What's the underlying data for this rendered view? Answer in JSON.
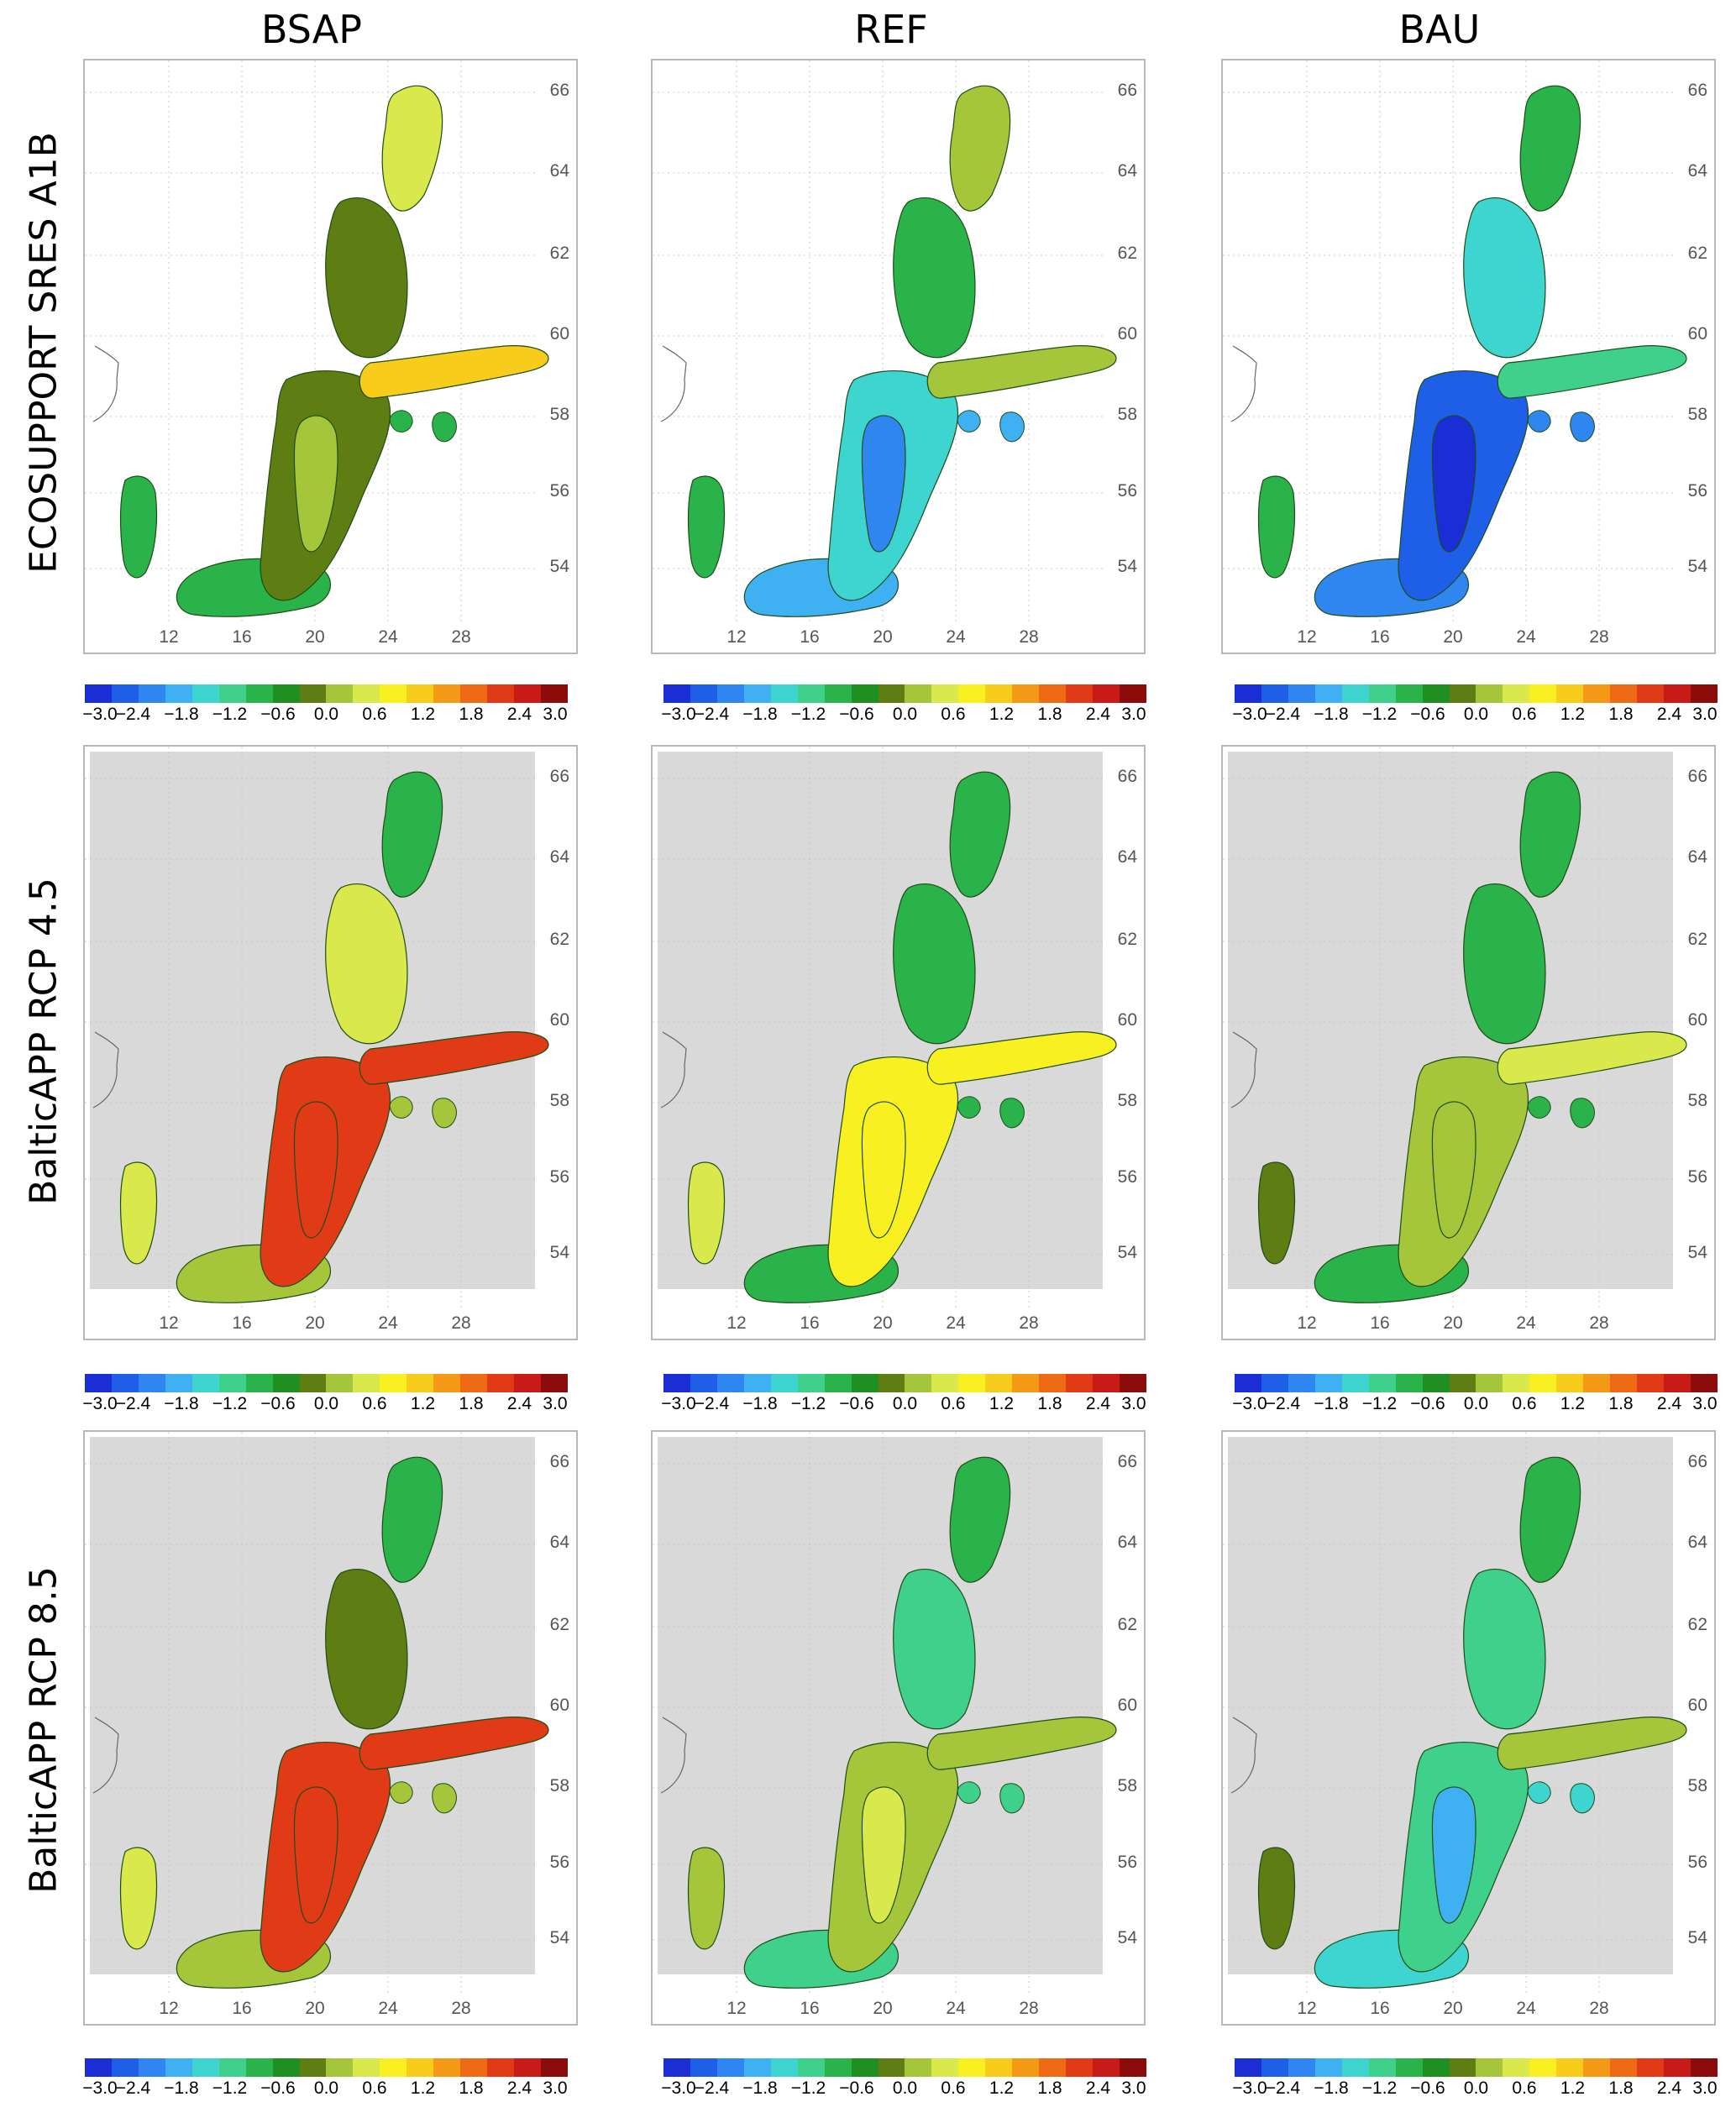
{
  "columns": [
    "BSAP",
    "REF",
    "BAU"
  ],
  "rows": [
    "ECOSUPPORT SRES   A1B",
    "BalticAPP RCP 4.5",
    "BalticAPP RCP 8.5"
  ],
  "lat_labels": [
    "66",
    "64",
    "62",
    "60",
    "58",
    "56",
    "54"
  ],
  "lon_labels": [
    "12",
    "16",
    "20",
    "24",
    "28"
  ],
  "colorbar": {
    "ticks": [
      "-3.0",
      "-2.4",
      "-1.8",
      "-1.2",
      "-0.6",
      "0.0",
      "0.6",
      "1.2",
      "1.8",
      "2.4",
      "3.0"
    ],
    "colors": [
      "#1b2ed6",
      "#1f5fe8",
      "#2f86f0",
      "#3fb0f2",
      "#3ed4d0",
      "#3fd08c",
      "#29b34a",
      "#1f8f22",
      "#5e7d12",
      "#a5c63a",
      "#d9e84a",
      "#f8f020",
      "#f8cc1a",
      "#f59a16",
      "#ee6a14",
      "#e03a17",
      "#c81a16",
      "#8c0c0c"
    ]
  },
  "panels": [
    {
      "id": "a1b-bsap",
      "background": "none",
      "fill": {
        "bothnian_bay": "#d9e84a",
        "bothnian_sea": "#5e7d12",
        "gulf_of_finland": "#f8cc1a",
        "baltic_proper": "#5e7d12",
        "gotland": "#a5c63a",
        "southern": "#29b34a",
        "kattegat": "#29b34a"
      }
    },
    {
      "id": "a1b-ref",
      "background": "none",
      "fill": {
        "bothnian_bay": "#a5c63a",
        "bothnian_sea": "#29b34a",
        "gulf_of_finland": "#a5c63a",
        "baltic_proper": "#3ed4d0",
        "gotland": "#2f86f0",
        "southern": "#3fb0f2",
        "kattegat": "#29b34a"
      }
    },
    {
      "id": "a1b-bau",
      "background": "none",
      "fill": {
        "bothnian_bay": "#29b34a",
        "bothnian_sea": "#3ed4d0",
        "gulf_of_finland": "#3fd08c",
        "baltic_proper": "#1f5fe8",
        "gotland": "#1b2ed6",
        "southern": "#2f86f0",
        "kattegat": "#29b34a"
      }
    },
    {
      "id": "rcp45-bsap",
      "background": "grid",
      "fill": {
        "bothnian_bay": "#29b34a",
        "bothnian_sea": "#d9e84a",
        "gulf_of_finland": "#e03a17",
        "baltic_proper": "#e03a17",
        "gotland": "#e03a17",
        "southern": "#a5c63a",
        "kattegat": "#d9e84a"
      }
    },
    {
      "id": "rcp45-ref",
      "background": "grid",
      "fill": {
        "bothnian_bay": "#29b34a",
        "bothnian_sea": "#29b34a",
        "gulf_of_finland": "#f8f020",
        "baltic_proper": "#f8f020",
        "gotland": "#f8f020",
        "southern": "#29b34a",
        "kattegat": "#d9e84a"
      }
    },
    {
      "id": "rcp45-bau",
      "background": "grid",
      "fill": {
        "bothnian_bay": "#29b34a",
        "bothnian_sea": "#29b34a",
        "gulf_of_finland": "#d9e84a",
        "baltic_proper": "#a5c63a",
        "gotland": "#a5c63a",
        "southern": "#29b34a",
        "kattegat": "#5e7d12"
      }
    },
    {
      "id": "rcp85-bsap",
      "background": "grid",
      "fill": {
        "bothnian_bay": "#29b34a",
        "bothnian_sea": "#5e7d12",
        "gulf_of_finland": "#e03a17",
        "baltic_proper": "#e03a17",
        "gotland": "#e03a17",
        "southern": "#a5c63a",
        "kattegat": "#d9e84a"
      }
    },
    {
      "id": "rcp85-ref",
      "background": "grid",
      "fill": {
        "bothnian_bay": "#29b34a",
        "bothnian_sea": "#3fd08c",
        "gulf_of_finland": "#a5c63a",
        "baltic_proper": "#a5c63a",
        "gotland": "#d9e84a",
        "southern": "#3fd08c",
        "kattegat": "#a5c63a"
      }
    },
    {
      "id": "rcp85-bau",
      "background": "grid",
      "fill": {
        "bothnian_bay": "#29b34a",
        "bothnian_sea": "#3fd08c",
        "gulf_of_finland": "#a5c63a",
        "baltic_proper": "#3fd08c",
        "gotland": "#3fb0f2",
        "southern": "#3ed4d0",
        "kattegat": "#5e7d12"
      }
    }
  ]
}
